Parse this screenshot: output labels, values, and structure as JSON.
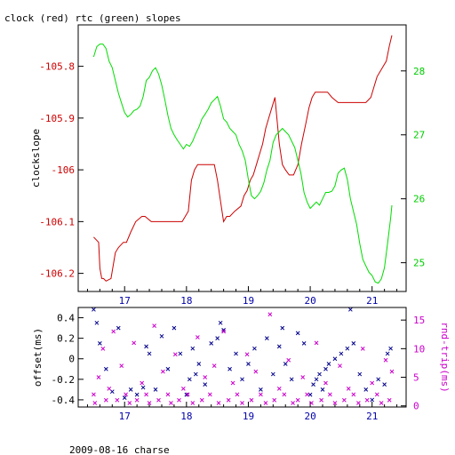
{
  "title": "clock (red) rtc (green) slopes",
  "footer": "2009-08-16 charse",
  "chart_data": [
    {
      "type": "line",
      "ylabel": "clockslope",
      "y2label": "",
      "xlim": [
        16.25,
        21.55
      ],
      "ylim": [
        -106.235,
        -105.72
      ],
      "y2lim": [
        24.55,
        28.72
      ],
      "x_ticks": [
        17,
        18,
        19,
        20,
        21
      ],
      "y_ticks": [
        -105.8,
        -105.9,
        -106,
        -106.1,
        -106.2
      ],
      "y2_ticks": [
        25,
        26,
        27,
        28
      ],
      "grid": false,
      "colors": {
        "clock": "#cc0000",
        "rtc": "#00dd00",
        "axis_left": "#cc0000",
        "axis_right": "#00cc00",
        "axis_bottom": "#0000aa"
      },
      "series": [
        {
          "axis": "left",
          "x": [
            16.5,
            16.58,
            16.6,
            16.63,
            16.66,
            16.7,
            16.78,
            16.85,
            16.9,
            16.98,
            17.03,
            17.1,
            17.18,
            17.28,
            17.33,
            17.43,
            17.53,
            17.63,
            17.73,
            17.83,
            17.93,
            18.03,
            18.08,
            18.13,
            18.18,
            18.22,
            18.27,
            18.35,
            18.45,
            18.5,
            18.55,
            18.6,
            18.65,
            18.7,
            18.78,
            18.88,
            18.93,
            18.98,
            19.03,
            19.08,
            19.13,
            19.18,
            19.23,
            19.28,
            19.33,
            19.38,
            19.43,
            19.5,
            19.55,
            19.6,
            19.66,
            19.73,
            19.8,
            19.86,
            19.93,
            19.98,
            20.03,
            20.08,
            20.13,
            20.2,
            20.28,
            20.35,
            20.45,
            20.55,
            20.6,
            20.63,
            20.75,
            20.9,
            20.98,
            21.03,
            21.08,
            21.13,
            21.18,
            21.23,
            21.28,
            21.32
          ],
          "y": [
            -106.13,
            -106.14,
            -106.19,
            -106.21,
            -106.21,
            -106.215,
            -106.21,
            -106.16,
            -106.15,
            -106.14,
            -106.14,
            -106.12,
            -106.1,
            -106.09,
            -106.09,
            -106.1,
            -106.1,
            -106.1,
            -106.1,
            -106.1,
            -106.1,
            -106.08,
            -106.02,
            -106.0,
            -105.99,
            -105.99,
            -105.99,
            -105.99,
            -105.99,
            -106.02,
            -106.06,
            -106.1,
            -106.09,
            -106.09,
            -106.08,
            -106.07,
            -106.05,
            -106.04,
            -106.02,
            -106.01,
            -105.99,
            -105.97,
            -105.95,
            -105.92,
            -105.9,
            -105.88,
            -105.86,
            -105.95,
            -105.99,
            -106.0,
            -106.01,
            -106.01,
            -105.99,
            -105.95,
            -105.91,
            -105.88,
            -105.86,
            -105.85,
            -105.85,
            -105.85,
            -105.85,
            -105.86,
            -105.87,
            -105.87,
            -105.87,
            -105.87,
            -105.87,
            -105.87,
            -105.86,
            -105.84,
            -105.82,
            -105.81,
            -105.8,
            -105.79,
            -105.76,
            -105.74
          ]
        },
        {
          "axis": "right",
          "x": [
            16.5,
            16.55,
            16.6,
            16.65,
            16.7,
            16.75,
            16.8,
            16.85,
            16.9,
            16.95,
            17.0,
            17.05,
            17.1,
            17.15,
            17.2,
            17.25,
            17.3,
            17.35,
            17.4,
            17.45,
            17.5,
            17.55,
            17.6,
            17.65,
            17.7,
            17.75,
            17.8,
            17.85,
            17.9,
            17.95,
            18.0,
            18.05,
            18.1,
            18.15,
            18.2,
            18.25,
            18.3,
            18.35,
            18.4,
            18.45,
            18.5,
            18.55,
            18.6,
            18.65,
            18.7,
            18.75,
            18.8,
            18.85,
            18.9,
            18.95,
            19.0,
            19.05,
            19.1,
            19.15,
            19.2,
            19.25,
            19.3,
            19.35,
            19.4,
            19.45,
            19.5,
            19.55,
            19.6,
            19.65,
            19.7,
            19.75,
            19.8,
            19.85,
            19.9,
            19.95,
            20.0,
            20.05,
            20.1,
            20.15,
            20.2,
            20.25,
            20.3,
            20.35,
            20.4,
            20.45,
            20.5,
            20.55,
            20.6,
            20.65,
            20.7,
            20.75,
            20.8,
            20.85,
            20.9,
            20.95,
            21.0,
            21.05,
            21.1,
            21.15,
            21.2,
            21.25,
            21.3,
            21.32
          ],
          "y": [
            28.22,
            28.38,
            28.42,
            28.42,
            28.35,
            28.15,
            28.05,
            27.85,
            27.65,
            27.5,
            27.35,
            27.28,
            27.32,
            27.38,
            27.4,
            27.45,
            27.6,
            27.85,
            27.9,
            28.0,
            28.05,
            27.95,
            27.78,
            27.55,
            27.3,
            27.1,
            27.0,
            26.92,
            26.85,
            26.78,
            26.85,
            26.82,
            26.9,
            27.02,
            27.12,
            27.25,
            27.32,
            27.4,
            27.5,
            27.55,
            27.6,
            27.45,
            27.25,
            27.2,
            27.1,
            27.05,
            27.0,
            26.85,
            26.75,
            26.6,
            26.3,
            26.05,
            26.0,
            26.05,
            26.12,
            26.25,
            26.45,
            26.6,
            26.88,
            27.0,
            27.05,
            27.1,
            27.05,
            27.0,
            26.9,
            26.8,
            26.6,
            26.4,
            26.1,
            25.95,
            25.85,
            25.9,
            25.95,
            25.9,
            26.0,
            26.1,
            26.1,
            26.12,
            26.2,
            26.4,
            26.45,
            26.48,
            26.3,
            26.0,
            25.8,
            25.6,
            25.3,
            25.05,
            24.95,
            24.85,
            24.8,
            24.7,
            24.68,
            24.75,
            24.92,
            25.3,
            25.7,
            25.9
          ]
        }
      ]
    },
    {
      "type": "scatter",
      "ylabel": "offset(ms)",
      "y2label": "rnd-trip(ms)",
      "xlim": [
        16.25,
        21.55
      ],
      "ylim": [
        -0.47,
        0.5
      ],
      "y2lim": [
        -0.2,
        17.2
      ],
      "x_ticks": [
        17,
        18,
        19,
        20,
        21
      ],
      "y_ticks": [
        0.4,
        0.2,
        0,
        -0.2,
        -0.4
      ],
      "y2_ticks": [
        15,
        10,
        5,
        0
      ],
      "grid": false,
      "colors": {
        "offset": "#00008b",
        "rnd_trip": "#cc00cc",
        "axis_left": "#000000",
        "axis_right": "#cc00cc",
        "axis_bottom": "#0000aa"
      },
      "series": [
        {
          "axis": "left",
          "marker": "x",
          "x": [
            16.5,
            16.55,
            16.6,
            16.7,
            16.8,
            16.9,
            17.0,
            17.1,
            17.2,
            17.3,
            17.35,
            17.4,
            17.5,
            17.6,
            17.7,
            17.8,
            17.9,
            18.0,
            18.05,
            18.1,
            18.15,
            18.2,
            18.3,
            18.4,
            18.5,
            18.55,
            18.6,
            18.7,
            18.8,
            18.9,
            19.0,
            19.1,
            19.2,
            19.3,
            19.4,
            19.5,
            19.55,
            19.6,
            19.7,
            19.8,
            19.9,
            20.0,
            20.05,
            20.1,
            20.15,
            20.2,
            20.25,
            20.3,
            20.4,
            20.5,
            20.6,
            20.65,
            20.7,
            20.8,
            20.9,
            21.0,
            21.1,
            21.2,
            21.25,
            21.3
          ],
          "y": [
            0.48,
            0.35,
            0.15,
            -0.1,
            -0.32,
            0.3,
            -0.38,
            -0.3,
            -0.35,
            -0.28,
            0.12,
            0.05,
            -0.3,
            0.22,
            -0.1,
            0.3,
            0.05,
            -0.35,
            -0.2,
            0.1,
            -0.15,
            -0.05,
            -0.25,
            0.15,
            0.2,
            0.35,
            0.28,
            -0.1,
            0.05,
            -0.2,
            -0.05,
            0.1,
            -0.3,
            0.2,
            -0.15,
            0.12,
            0.3,
            -0.05,
            -0.2,
            0.25,
            0.15,
            -0.35,
            -0.25,
            -0.2,
            -0.15,
            -0.3,
            -0.1,
            -0.05,
            0.0,
            0.05,
            0.1,
            0.48,
            0.15,
            -0.15,
            -0.3,
            -0.4,
            -0.2,
            -0.25,
            0.05,
            0.1
          ]
        },
        {
          "axis": "right",
          "marker": "x",
          "x": [
            16.5,
            16.52,
            16.58,
            16.65,
            16.7,
            16.75,
            16.82,
            16.88,
            16.95,
            17.02,
            17.08,
            17.15,
            17.2,
            17.28,
            17.35,
            17.4,
            17.48,
            17.55,
            17.62,
            17.7,
            17.75,
            17.82,
            17.88,
            17.95,
            18.02,
            18.1,
            18.18,
            18.25,
            18.3,
            18.38,
            18.45,
            18.52,
            18.6,
            18.68,
            18.75,
            18.82,
            18.9,
            18.98,
            19.05,
            19.12,
            19.2,
            19.28,
            19.35,
            19.42,
            19.5,
            19.58,
            19.65,
            19.72,
            19.8,
            19.88,
            19.95,
            20.02,
            20.1,
            20.18,
            20.25,
            20.32,
            20.4,
            20.48,
            20.55,
            20.62,
            20.7,
            20.78,
            20.85,
            20.92,
            21.0,
            21.08,
            21.15,
            21.22,
            21.28,
            21.32
          ],
          "y": [
            2,
            0.5,
            5,
            10,
            1,
            3,
            13,
            1,
            7,
            2,
            0.5,
            11,
            1,
            4,
            2,
            0.5,
            14,
            1,
            6,
            2,
            0.5,
            9,
            1,
            3,
            2,
            0.5,
            12,
            1,
            5,
            2,
            7,
            0.5,
            13,
            1,
            4,
            2,
            0.5,
            9,
            1,
            6,
            2,
            0.5,
            16,
            1,
            3,
            2,
            8,
            0.5,
            1,
            5,
            2,
            0.5,
            11,
            1,
            4,
            2,
            0.5,
            7,
            1,
            3,
            2,
            0.5,
            10,
            1,
            4,
            2,
            0.5,
            8,
            1,
            6
          ]
        }
      ]
    }
  ]
}
